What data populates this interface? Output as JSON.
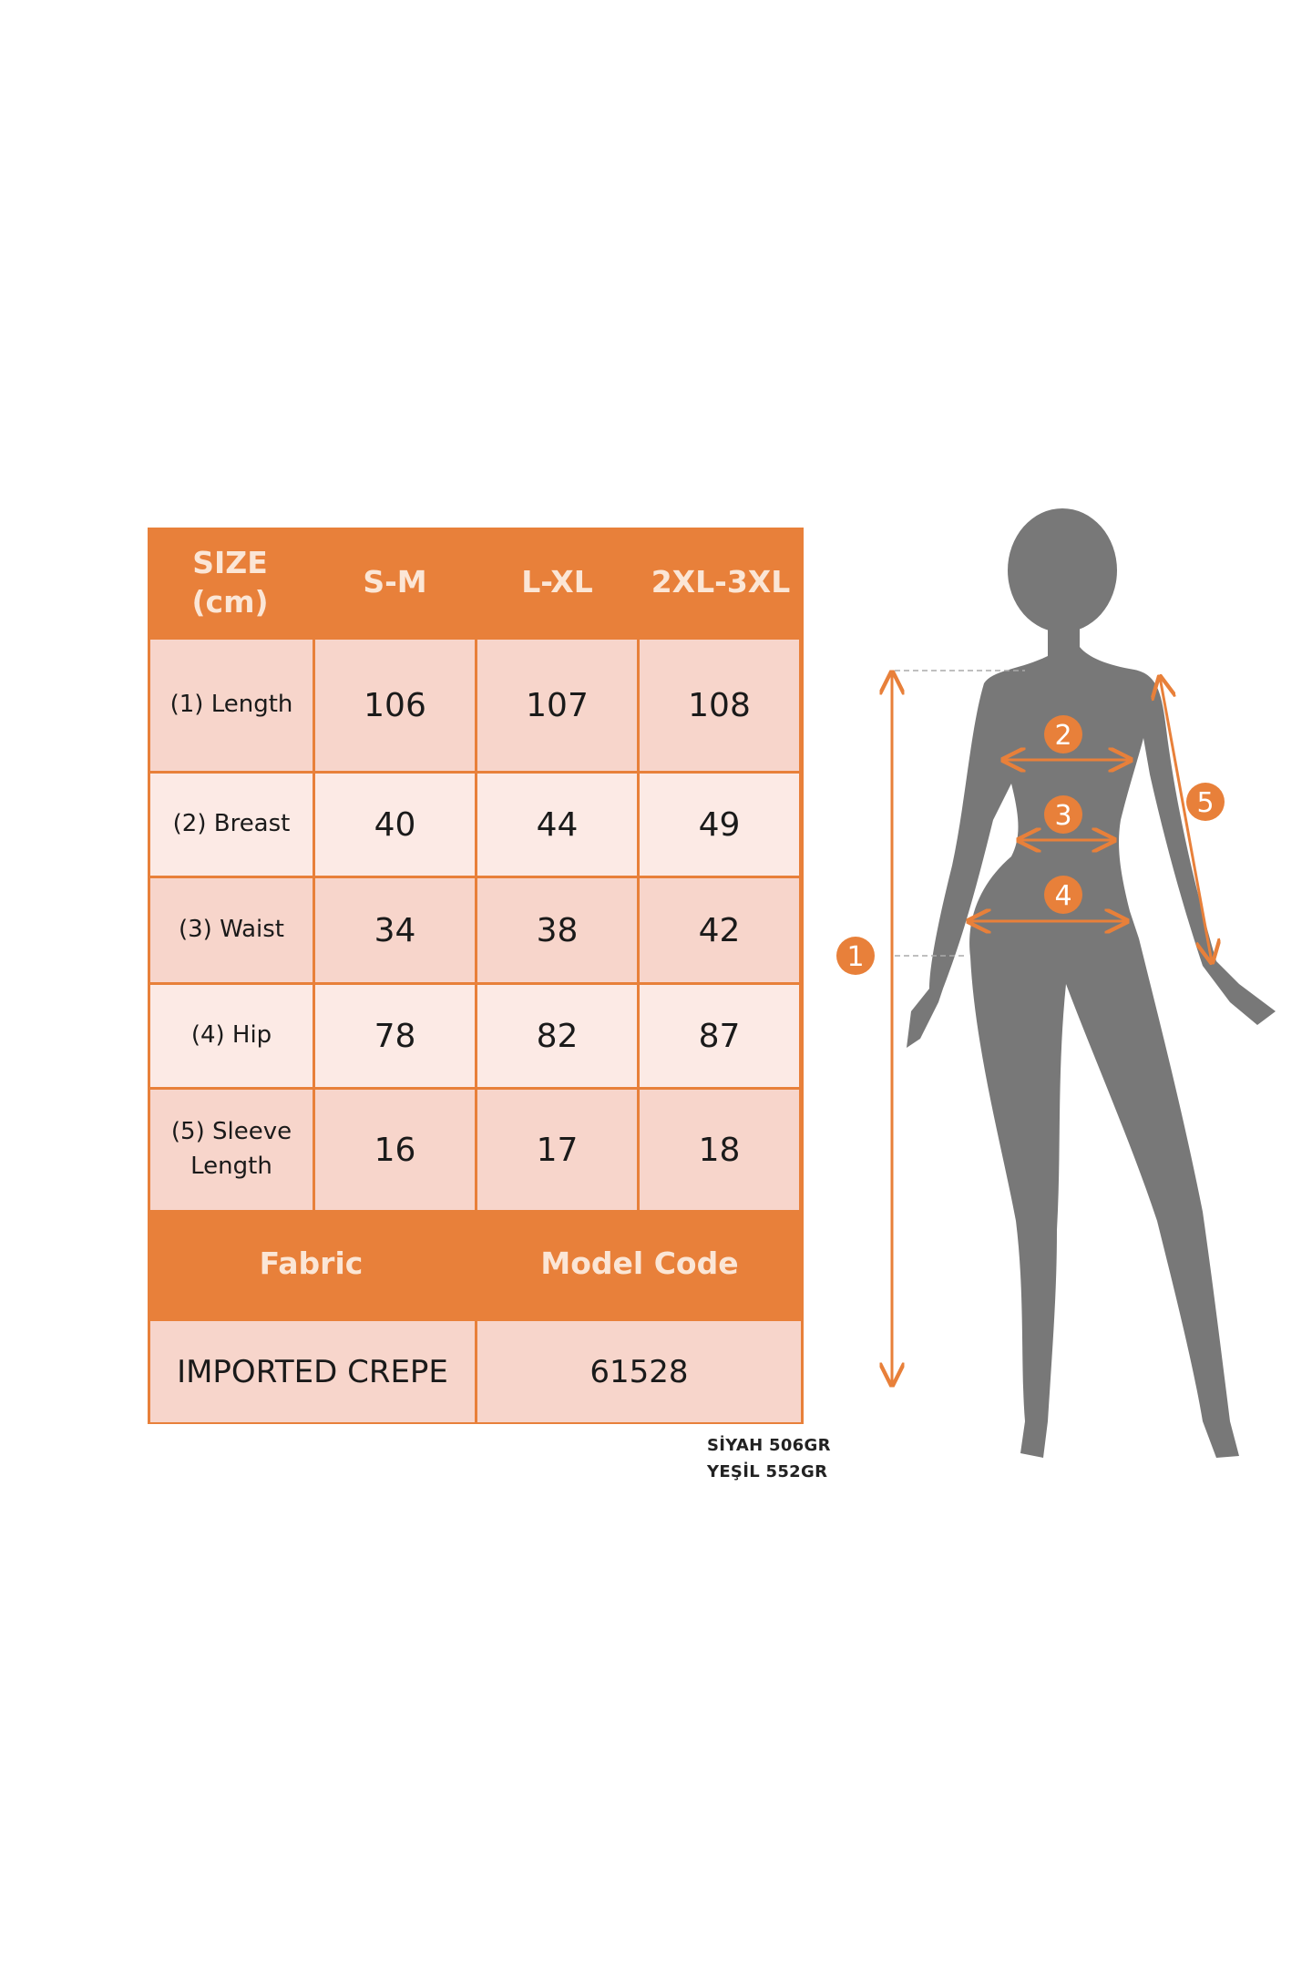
{
  "table": {
    "header": [
      "SIZE\n(cm)",
      "S-M",
      "L-XL",
      "2XL-3XL"
    ],
    "rows": [
      {
        "label": "(1) Length",
        "values": [
          "106",
          "107",
          "108"
        ]
      },
      {
        "label": "(2) Breast",
        "values": [
          "40",
          "44",
          "49"
        ]
      },
      {
        "label": "(3) Waist",
        "values": [
          "34",
          "38",
          "42"
        ]
      },
      {
        "label": "(4) Hip",
        "values": [
          "78",
          "82",
          "87"
        ]
      },
      {
        "label": "(5) Sleeve\nLength",
        "values": [
          "16",
          "17",
          "18"
        ]
      }
    ],
    "footer_header": [
      "Fabric",
      "Model Code"
    ],
    "footer_values": [
      "IMPORTED CREPE",
      "61528"
    ]
  },
  "notes": [
    "SİYAH 506GR",
    "YEŞİL 552GR"
  ],
  "diagram": {
    "markers": [
      "1",
      "2",
      "3",
      "4",
      "5"
    ],
    "colors": {
      "accent": "#E8803A",
      "silhouette": "#787878"
    }
  }
}
